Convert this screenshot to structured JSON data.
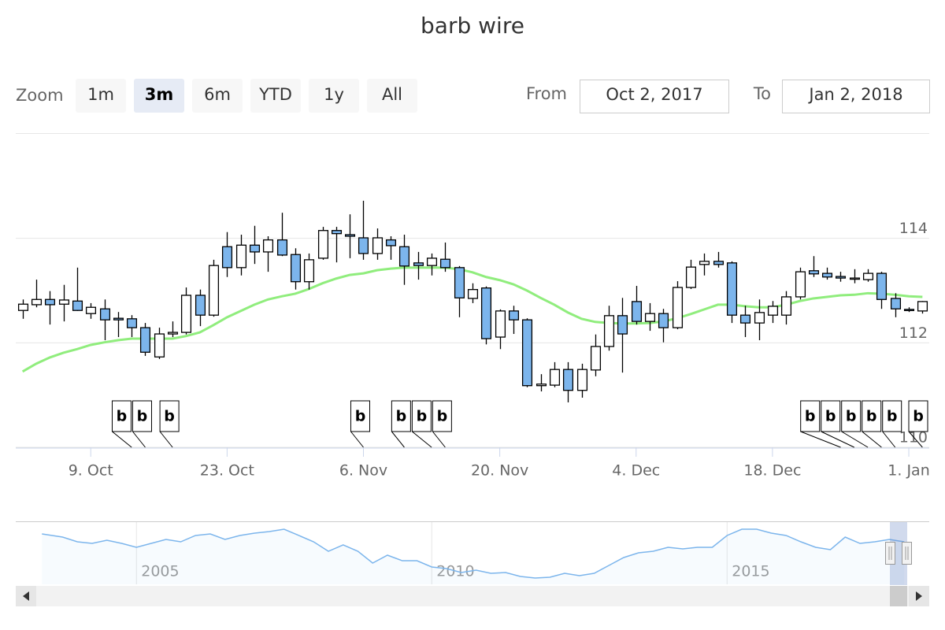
{
  "chart_data": {
    "type": "candlestick",
    "title": "barb wire",
    "range_selector": {
      "zoom_label": "Zoom",
      "buttons": [
        "1m",
        "3m",
        "6m",
        "YTD",
        "1y",
        "All"
      ],
      "selected": 1,
      "from_label": "From",
      "from": "Oct 2, 2017",
      "to_label": "To",
      "to": "Jan 2, 2018"
    },
    "categories": [
      null,
      null,
      null,
      null,
      null,
      "9. Oct",
      null,
      null,
      null,
      null,
      null,
      null,
      null,
      null,
      null,
      "23. Oct",
      null,
      null,
      null,
      null,
      null,
      null,
      null,
      null,
      null,
      "6. Nov",
      null,
      null,
      null,
      null,
      null,
      null,
      null,
      null,
      null,
      "20. Nov",
      null,
      null,
      null,
      null,
      null,
      null,
      null,
      null,
      null,
      "4. Dec",
      null,
      null,
      null,
      null,
      null,
      null,
      null,
      null,
      null,
      "18. Dec",
      null,
      null,
      null,
      null,
      null,
      null,
      null,
      null,
      null,
      "1. Jan",
      null
    ],
    "open": [
      112.62,
      112.73,
      112.83,
      112.74,
      112.8,
      112.56,
      112.65,
      112.47,
      112.46,
      112.29,
      111.73,
      112.17,
      112.2,
      112.91,
      112.53,
      113.84,
      113.44,
      113.87,
      113.74,
      113.97,
      113.69,
      113.17,
      113.62,
      114.15,
      114.07,
      114.01,
      113.71,
      113.97,
      113.84,
      113.53,
      113.48,
      113.6,
      113.44,
      112.85,
      113.05,
      112.11,
      112.61,
      112.44,
      111.18,
      111.19,
      111.49,
      111.09,
      111.48,
      111.93,
      112.52,
      112.79,
      112.41,
      112.56,
      112.29,
      113.06,
      113.5,
      113.56,
      113.53,
      112.53,
      112.38,
      112.53,
      112.53,
      112.88,
      113.38,
      113.33,
      113.27,
      113.23,
      113.21,
      113.33,
      112.85,
      112.64,
      112.61
    ],
    "high": [
      112.83,
      113.21,
      112.99,
      113.11,
      113.44,
      112.76,
      112.83,
      112.59,
      112.53,
      112.38,
      112.29,
      112.41,
      113.06,
      113.02,
      113.59,
      114.12,
      114.07,
      114.24,
      114.04,
      114.49,
      113.81,
      113.71,
      114.22,
      114.22,
      114.46,
      114.72,
      114.19,
      114.04,
      114.07,
      113.74,
      113.71,
      113.92,
      113.47,
      113.14,
      113.08,
      112.64,
      112.71,
      112.47,
      111.4,
      111.63,
      111.63,
      111.6,
      112.16,
      112.71,
      112.86,
      113.09,
      112.76,
      112.65,
      113.18,
      113.59,
      113.71,
      113.74,
      113.56,
      112.71,
      112.83,
      112.8,
      112.99,
      113.44,
      113.66,
      113.44,
      113.36,
      113.41,
      113.41,
      113.36,
      112.95,
      112.68,
      112.8
    ],
    "low": [
      112.46,
      112.68,
      112.35,
      112.41,
      112.61,
      112.46,
      112.05,
      112.11,
      112.11,
      111.75,
      111.69,
      112.11,
      112.16,
      112.32,
      112.5,
      113.26,
      113.29,
      113.51,
      113.36,
      113.66,
      113.02,
      113.02,
      113.59,
      113.54,
      113.62,
      113.59,
      113.59,
      113.59,
      113.11,
      113.21,
      113.29,
      113.36,
      112.49,
      112.76,
      111.97,
      111.88,
      112.17,
      111.15,
      111.07,
      111.15,
      110.86,
      110.95,
      111.36,
      111.85,
      111.43,
      112.35,
      112.23,
      112.01,
      112.26,
      113.03,
      113.29,
      113.44,
      112.38,
      112.11,
      112.05,
      112.38,
      112.35,
      112.83,
      113.26,
      113.21,
      113.17,
      113.14,
      113.17,
      112.65,
      112.49,
      112.59,
      112.56
    ],
    "close": [
      112.74,
      112.83,
      112.73,
      112.82,
      112.62,
      112.68,
      112.44,
      112.44,
      112.29,
      111.82,
      112.17,
      112.2,
      112.91,
      112.53,
      113.48,
      113.44,
      113.87,
      113.74,
      113.97,
      113.68,
      113.17,
      113.59,
      114.15,
      114.09,
      114.04,
      113.71,
      114.01,
      113.86,
      113.47,
      113.48,
      113.62,
      113.44,
      112.86,
      113.02,
      112.08,
      112.61,
      112.44,
      111.18,
      111.21,
      111.49,
      111.09,
      111.49,
      111.93,
      112.52,
      112.17,
      112.41,
      112.56,
      112.29,
      113.06,
      113.45,
      113.56,
      113.5,
      112.53,
      112.38,
      112.58,
      112.7,
      112.88,
      113.36,
      113.32,
      113.26,
      113.24,
      113.24,
      113.33,
      112.83,
      112.65,
      112.62,
      112.79
    ],
    "up_color": "#ffffff",
    "down_color": "#7cb5ec",
    "overlay": {
      "color": "#90ed7d",
      "values": [
        111.45,
        111.6,
        111.72,
        111.81,
        111.88,
        111.96,
        112.01,
        112.05,
        112.08,
        112.08,
        112.08,
        112.08,
        112.13,
        112.2,
        112.34,
        112.49,
        112.61,
        112.73,
        112.83,
        112.89,
        112.94,
        113.03,
        113.14,
        113.23,
        113.3,
        113.33,
        113.39,
        113.42,
        113.44,
        113.44,
        113.44,
        113.44,
        113.41,
        113.35,
        113.26,
        113.2,
        113.12,
        113.0,
        112.86,
        112.73,
        112.58,
        112.46,
        112.4,
        112.38,
        112.37,
        112.37,
        112.38,
        112.41,
        112.47,
        112.55,
        112.64,
        112.73,
        112.73,
        112.7,
        112.68,
        112.68,
        112.73,
        112.8,
        112.85,
        112.88,
        112.91,
        112.92,
        112.95,
        112.94,
        112.92,
        112.89,
        112.88
      ]
    },
    "flags": {
      "title": "b",
      "x": [
        8,
        9,
        11,
        25,
        28,
        30,
        31,
        60,
        61,
        62,
        63,
        64,
        66
      ]
    },
    "ylim": [
      110,
      116
    ],
    "yticks": [
      110,
      112,
      114
    ],
    "grid": true,
    "navigator": {
      "color": "#7cb5ec",
      "xlim": [
        2003.33,
        2018.05
      ],
      "ylim": [
        100,
        120
      ],
      "xticks": [
        2005,
        2010,
        2015
      ],
      "x": [
        2003.4,
        2003.75,
        2004,
        2004.25,
        2004.5,
        2004.75,
        2005,
        2005.25,
        2005.5,
        2005.75,
        2006,
        2006.25,
        2006.5,
        2006.75,
        2007,
        2007.25,
        2007.5,
        2007.75,
        2008,
        2008.25,
        2008.5,
        2008.75,
        2009,
        2009.25,
        2009.5,
        2009.75,
        2010,
        2010.25,
        2010.5,
        2010.75,
        2011,
        2011.25,
        2011.5,
        2011.75,
        2012,
        2012.25,
        2012.5,
        2012.75,
        2013,
        2013.25,
        2013.5,
        2013.75,
        2014,
        2014.25,
        2014.5,
        2014.75,
        2015,
        2015.25,
        2015.5,
        2015.75,
        2016,
        2016.25,
        2016.5,
        2016.75,
        2017,
        2017.25,
        2017.5,
        2017.75,
        2018
      ],
      "values": [
        116.2,
        115.19,
        113.67,
        113.16,
        114.18,
        113.16,
        111.9,
        113.16,
        114.43,
        113.67,
        115.7,
        116.2,
        114.43,
        115.7,
        116.46,
        116.96,
        117.72,
        115.7,
        113.67,
        110.63,
        112.66,
        110.63,
        106.84,
        109.37,
        107.59,
        107.59,
        105.57,
        105.06,
        103.8,
        104.56,
        103.54,
        103.8,
        102.53,
        102.03,
        102.28,
        103.54,
        102.78,
        103.54,
        106.08,
        108.61,
        110.13,
        110.63,
        111.9,
        111.39,
        111.9,
        111.9,
        115.7,
        117.72,
        117.72,
        116.46,
        115.7,
        113.67,
        111.9,
        111.14,
        115.19,
        113.16,
        113.67,
        114.43,
        113.67
      ]
    }
  }
}
